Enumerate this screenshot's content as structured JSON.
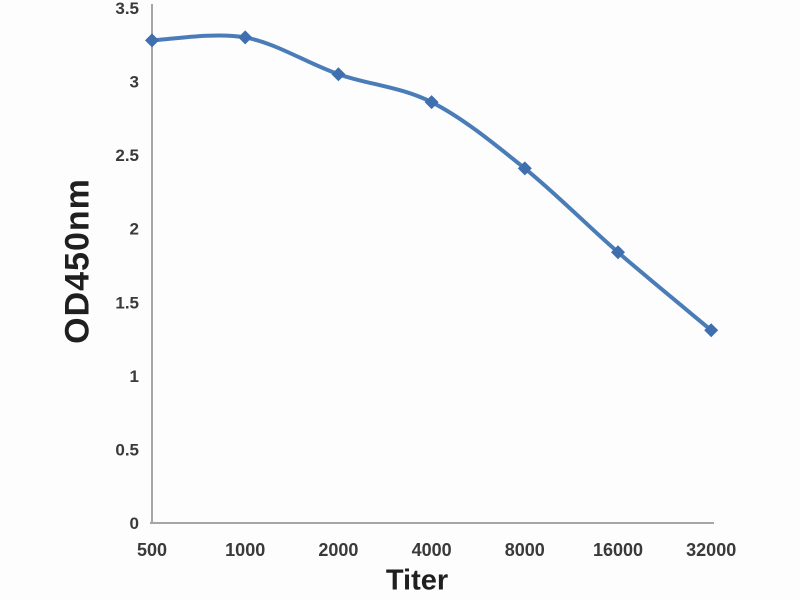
{
  "chart_data": {
    "type": "line",
    "title": "",
    "xlabel": "Titer",
    "ylabel": "OD450nm",
    "x_categories": [
      "500",
      "1000",
      "2000",
      "4000",
      "8000",
      "16000",
      "32000"
    ],
    "series": [
      {
        "name": "OD450nm",
        "values": [
          3.28,
          3.3,
          3.05,
          2.86,
          2.41,
          1.84,
          1.31
        ]
      }
    ],
    "ylim": [
      0,
      3.5
    ],
    "ytick_values": [
      0,
      0.5,
      1,
      1.5,
      2,
      2.5,
      3,
      3.5
    ],
    "ytick_labels": [
      "0",
      "0.5",
      "1",
      "1.5",
      "2",
      "2.5",
      "3",
      "3.5"
    ],
    "grid": false,
    "legend": "none",
    "marker": "diamond",
    "smooth": true,
    "colors": {
      "line": "#4a7db8",
      "marker": "#3f6fae",
      "axis": "#a6a6a6",
      "tick_label": "#3a3a3a",
      "axis_title": "#1f1f1f",
      "background": "#fdfdfd"
    }
  }
}
